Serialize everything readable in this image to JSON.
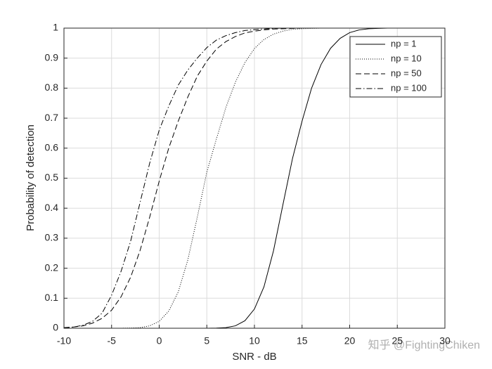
{
  "chart_data": {
    "type": "line",
    "xlabel": "SNR - dB",
    "ylabel": "Probability of detection",
    "x": [
      -10,
      -9,
      -8,
      -7,
      -6,
      -5,
      -4,
      -3,
      -2,
      -1,
      0,
      1,
      2,
      3,
      4,
      5,
      6,
      7,
      8,
      9,
      10,
      11,
      12,
      13,
      14,
      15,
      16,
      17,
      18,
      19,
      20,
      21,
      22,
      23,
      24,
      25,
      26,
      27,
      28,
      29,
      30
    ],
    "series": [
      {
        "name": "np = 1",
        "color": "#000000",
        "style": "solid",
        "values": [
          0,
          0,
          0,
          0,
          0,
          0,
          0,
          0,
          0,
          0,
          0,
          0,
          0,
          0,
          0,
          0,
          0.0006,
          0.002,
          0.008,
          0.025,
          0.064,
          0.138,
          0.258,
          0.413,
          0.566,
          0.69,
          0.8,
          0.879,
          0.933,
          0.966,
          0.985,
          0.994,
          0.998,
          0.999,
          1,
          1,
          1,
          1,
          1,
          1,
          1
        ]
      },
      {
        "name": "np = 10",
        "color": "#000000",
        "style": "dotted",
        "values": [
          0,
          0,
          0,
          0,
          0,
          0,
          0.0001,
          0.0006,
          0.002,
          0.008,
          0.023,
          0.057,
          0.121,
          0.227,
          0.37,
          0.52,
          0.63,
          0.735,
          0.82,
          0.885,
          0.932,
          0.962,
          0.98,
          0.99,
          0.996,
          0.998,
          0.999,
          1,
          1,
          1,
          1,
          1,
          1,
          1,
          1,
          1,
          1,
          1,
          1,
          1,
          1
        ]
      },
      {
        "name": "np = 50",
        "color": "#000000",
        "style": "dashed",
        "values": [
          0.002,
          0.004,
          0.008,
          0.017,
          0.033,
          0.06,
          0.105,
          0.17,
          0.26,
          0.37,
          0.49,
          0.6,
          0.69,
          0.77,
          0.84,
          0.89,
          0.93,
          0.955,
          0.972,
          0.984,
          0.99,
          0.994,
          0.997,
          0.998,
          0.999,
          1,
          1,
          1,
          1,
          1,
          1,
          1,
          1,
          1,
          1,
          1,
          1,
          1,
          1,
          1,
          1
        ]
      },
      {
        "name": "np = 100",
        "color": "#000000",
        "style": "dashdot",
        "values": [
          0.0015,
          0.004,
          0.01,
          0.023,
          0.05,
          0.11,
          0.19,
          0.29,
          0.42,
          0.55,
          0.66,
          0.74,
          0.81,
          0.86,
          0.9,
          0.935,
          0.96,
          0.975,
          0.985,
          0.992,
          0.995,
          0.997,
          0.999,
          1,
          1,
          1,
          1,
          1,
          1,
          1,
          1,
          1,
          1,
          1,
          1,
          1,
          1,
          1,
          1,
          1,
          1
        ]
      }
    ],
    "xlim": [
      -10,
      30
    ],
    "xticks": [
      -10,
      -5,
      0,
      5,
      10,
      15,
      20,
      25,
      30
    ],
    "ylim": [
      0,
      1
    ],
    "yticks": [
      0,
      0.1,
      0.2,
      0.3,
      0.4,
      0.5,
      0.6,
      0.7,
      0.8,
      0.9,
      1
    ],
    "grid": true,
    "legend": "top-right",
    "watermark": "知乎 @FightingChiken"
  }
}
